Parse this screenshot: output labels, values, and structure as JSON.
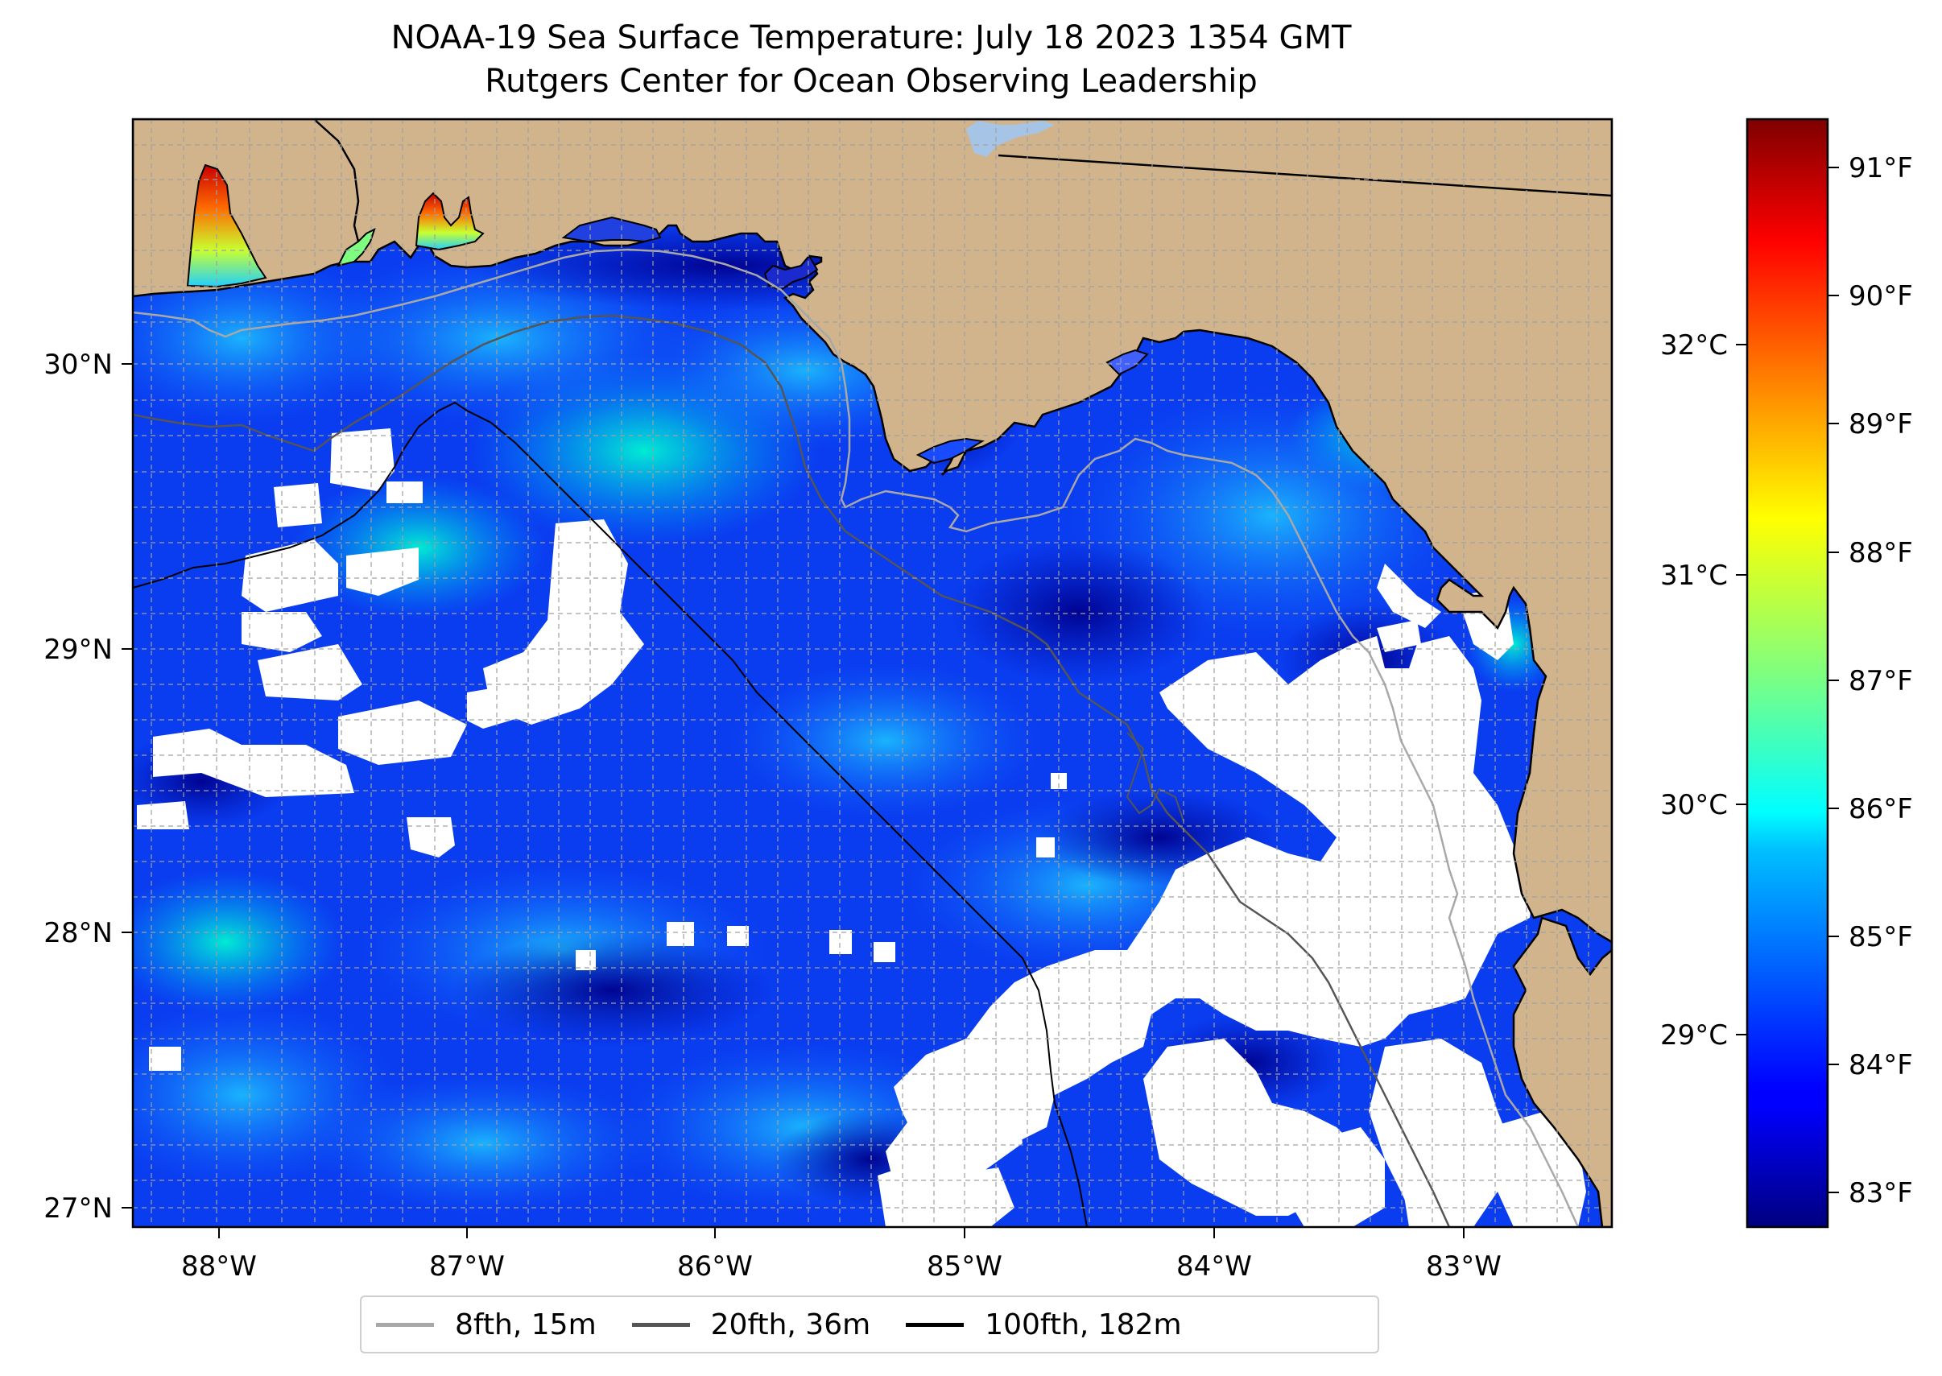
{
  "title_line1": "NOAA-19 Sea Surface Temperature: July 18 2023 1354 GMT",
  "title_line2": "Rutgers Center for Ocean Observing Leadership",
  "map": {
    "lon_ticks": [
      "88°W",
      "87°W",
      "86°W",
      "85°W",
      "84°W",
      "83°W"
    ],
    "lat_ticks": [
      "30°N",
      "29°N",
      "28°N",
      "27°N"
    ],
    "land_color": "#d2b48c",
    "cloud_color": "#ffffff",
    "extent": {
      "lon": [
        -88.33,
        -82.4
      ],
      "lat": [
        26.93,
        30.86
      ]
    }
  },
  "colorbar": {
    "colormap": "jet",
    "range_f": [
      82.7,
      91.3
    ],
    "fahrenheit_labels": [
      "91°F",
      "90°F",
      "89°F",
      "88°F",
      "87°F",
      "86°F",
      "85°F",
      "84°F",
      "83°F"
    ],
    "celsius_labels": [
      "32°C",
      "31°C",
      "30°C",
      "29°C"
    ]
  },
  "legend": {
    "items": [
      {
        "label": "8fth, 15m",
        "color": "#a8a8a8"
      },
      {
        "label": "20fth, 36m",
        "color": "#555555"
      },
      {
        "label": "100fth, 182m",
        "color": "#000000"
      }
    ]
  }
}
